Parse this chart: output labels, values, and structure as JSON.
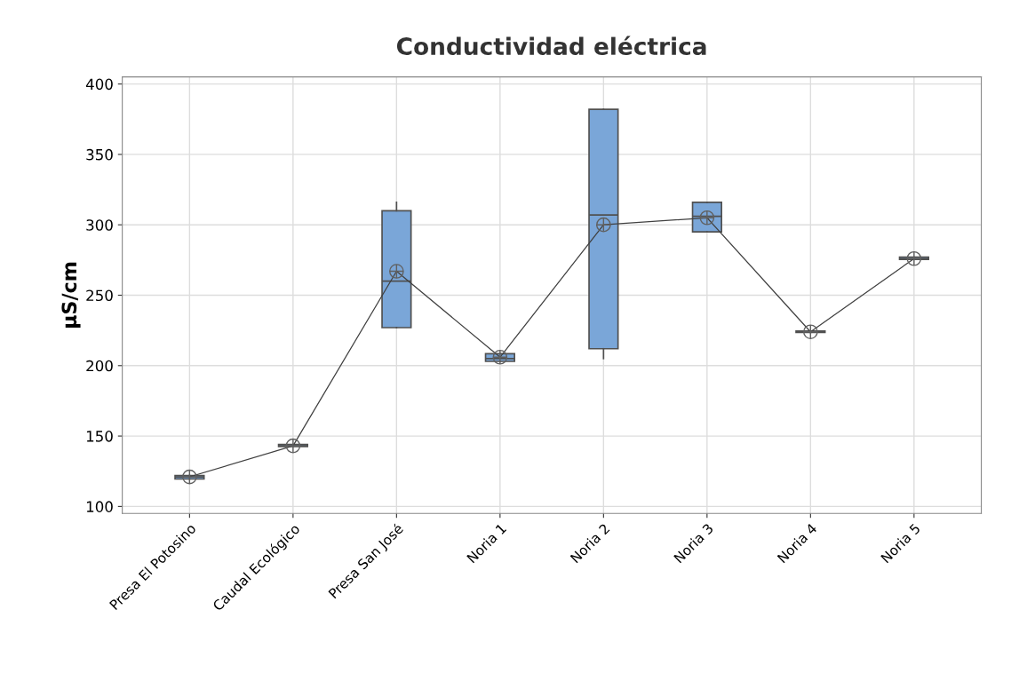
{
  "chart_data": {
    "type": "box",
    "title": "Conductividad eléctrica",
    "ylabel": "µS/cm",
    "categories": [
      "Presa El Potosino",
      "Caudal Ecológico",
      "Presa San José",
      "Noria 1",
      "Noria 2",
      "Noria 3",
      "Noria 4",
      "Noria 5"
    ],
    "boxes": [
      {
        "low": 119.5,
        "q1": 119.5,
        "median": 121,
        "q3": 122,
        "high": 122,
        "mean": 121
      },
      {
        "low": 142.5,
        "q1": 142.5,
        "median": 143,
        "q3": 144,
        "high": 144,
        "mean": 143
      },
      {
        "low": 227,
        "q1": 227,
        "median": 260,
        "q3": 310,
        "high": 316,
        "mean": 267
      },
      {
        "low": 203,
        "q1": 203,
        "median": 205,
        "q3": 208.5,
        "high": 208.5,
        "mean": 206
      },
      {
        "low": 205,
        "q1": 212,
        "median": 307,
        "q3": 382,
        "high": 382,
        "mean": 300
      },
      {
        "low": 295,
        "q1": 295,
        "median": 306,
        "q3": 316,
        "high": 316,
        "mean": 305
      },
      {
        "low": 223.5,
        "q1": 223.5,
        "median": 224,
        "q3": 224.5,
        "high": 224.5,
        "mean": 224
      },
      {
        "low": 275.5,
        "q1": 275.5,
        "median": 276,
        "q3": 277,
        "high": 277,
        "mean": 276
      }
    ],
    "color": "#7aa6d8",
    "series": [
      {
        "type": "line",
        "color": "#404040",
        "values": [
          121,
          143,
          267,
          206,
          300,
          305,
          224,
          276
        ]
      }
    ],
    "ylim": [
      95,
      405
    ],
    "yticks": [
      100,
      150,
      200,
      250,
      300,
      350,
      400
    ],
    "grid": true,
    "marker": "none",
    "line_style": "solid"
  }
}
